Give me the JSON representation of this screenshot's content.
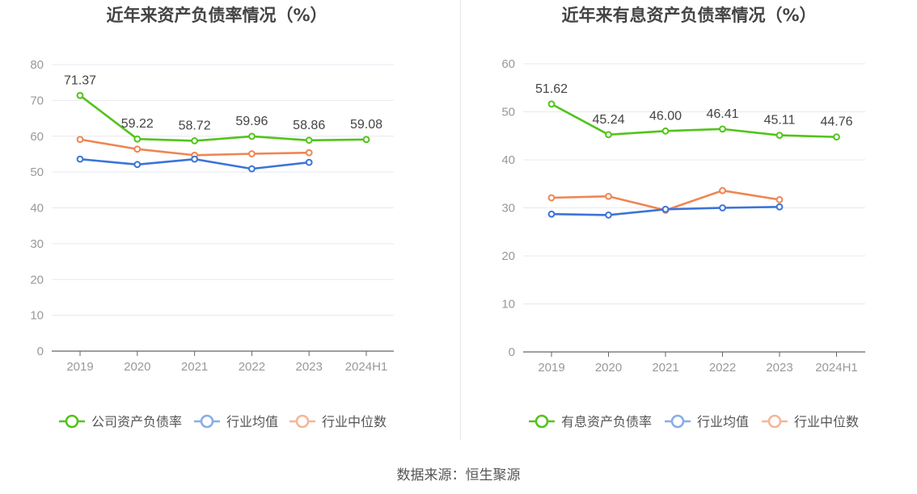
{
  "source": "数据来源：恒生聚源",
  "chart_data": [
    {
      "type": "line",
      "title": "近年来资产负债率情况（%）",
      "categories": [
        "2019",
        "2020",
        "2021",
        "2022",
        "2023",
        "2024H1"
      ],
      "ylim": [
        0,
        80
      ],
      "yticks": [
        0,
        10,
        20,
        30,
        40,
        50,
        60,
        70,
        80
      ],
      "grid": true,
      "legend_position": "bottom",
      "series": [
        {
          "name": "公司资产负债率",
          "color": "#52c41a",
          "values": [
            71.37,
            59.22,
            58.72,
            59.96,
            58.86,
            59.08
          ],
          "labels": [
            "71.37",
            "59.22",
            "58.72",
            "59.96",
            "58.86",
            "59.08"
          ]
        },
        {
          "name": "行业均值",
          "color": "#3b74d9",
          "values": [
            53.6,
            52.1,
            53.6,
            50.9,
            52.7,
            null
          ]
        },
        {
          "name": "行业中位数",
          "color": "#ee8652",
          "values": [
            59.1,
            56.4,
            54.7,
            55.1,
            55.4,
            null
          ]
        }
      ]
    },
    {
      "type": "line",
      "title": "近年来有息资产负债率情况（%）",
      "categories": [
        "2019",
        "2020",
        "2021",
        "2022",
        "2023",
        "2024H1"
      ],
      "ylim": [
        0,
        60
      ],
      "yticks": [
        0,
        10,
        20,
        30,
        40,
        50,
        60
      ],
      "grid": true,
      "legend_position": "bottom",
      "series": [
        {
          "name": "有息资产负债率",
          "color": "#52c41a",
          "values": [
            51.62,
            45.24,
            46.0,
            46.41,
            45.11,
            44.76
          ],
          "labels": [
            "51.62",
            "45.24",
            "46.00",
            "46.41",
            "45.11",
            "44.76"
          ]
        },
        {
          "name": "行业均值",
          "color": "#3b74d9",
          "values": [
            28.7,
            28.5,
            29.7,
            30.0,
            30.2,
            null
          ]
        },
        {
          "name": "行业中位数",
          "color": "#ee8652",
          "values": [
            32.1,
            32.4,
            29.5,
            33.6,
            31.7,
            null
          ]
        }
      ]
    }
  ]
}
